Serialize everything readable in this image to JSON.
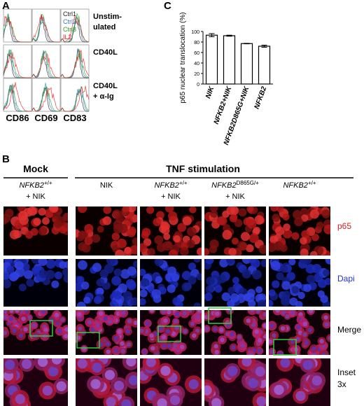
{
  "panel_a": {
    "label": "A",
    "legend": [
      {
        "name": "Ctrl1",
        "color": "#222222"
      },
      {
        "name": "Ctrl2",
        "color": "#2a7fc0"
      },
      {
        "name": "Ctrl3",
        "color": "#2ca02c"
      },
      {
        "name": "IL2",
        "color": "#e8202a"
      }
    ],
    "rows": [
      [
        "Unstim-",
        "ulated"
      ],
      [
        "CD40L"
      ],
      [
        "CD40L",
        "+ α-Ig"
      ]
    ],
    "columns": [
      "CD86",
      "CD69",
      "CD83"
    ]
  },
  "chart_data": {
    "type": "bar",
    "panel_label": "C",
    "y_label": "p65 nuclear translocation (%)",
    "categories": [
      "NIK",
      "NFKB2+NIK",
      "NFKB2D865G+NIK",
      "NFKB2"
    ],
    "values": [
      93,
      92,
      77,
      72
    ],
    "errors": [
      3,
      1,
      0.5,
      2
    ],
    "color": "#ffffff",
    "ylim": [
      0,
      100
    ],
    "yticks": [
      0,
      20,
      40,
      60,
      80,
      100
    ]
  },
  "panel_b": {
    "label": "B",
    "groups": [
      "Mock",
      "TNF stimulation"
    ],
    "columns": [
      {
        "gene": "NFKB2",
        "sup": "+/+",
        "suffix": "+ NIK"
      },
      {
        "gene": "NIK"
      },
      {
        "gene": "NFKB2",
        "sup": "+/+",
        "suffix": "+ NIK"
      },
      {
        "gene": "NFKB2",
        "sup": "D865G/+",
        "suffix": "+ NIK"
      },
      {
        "gene": "NFKB2",
        "sup": "+/+"
      }
    ],
    "rows": [
      {
        "lines": [
          "p65"
        ],
        "color": "#d42020"
      },
      {
        "lines": [
          "Dapi"
        ],
        "color": "#2233cc"
      },
      {
        "lines": [
          "Merge"
        ],
        "color": "#000000"
      },
      {
        "lines": [
          "Inset",
          "3x"
        ],
        "color": "#000000"
      }
    ]
  }
}
